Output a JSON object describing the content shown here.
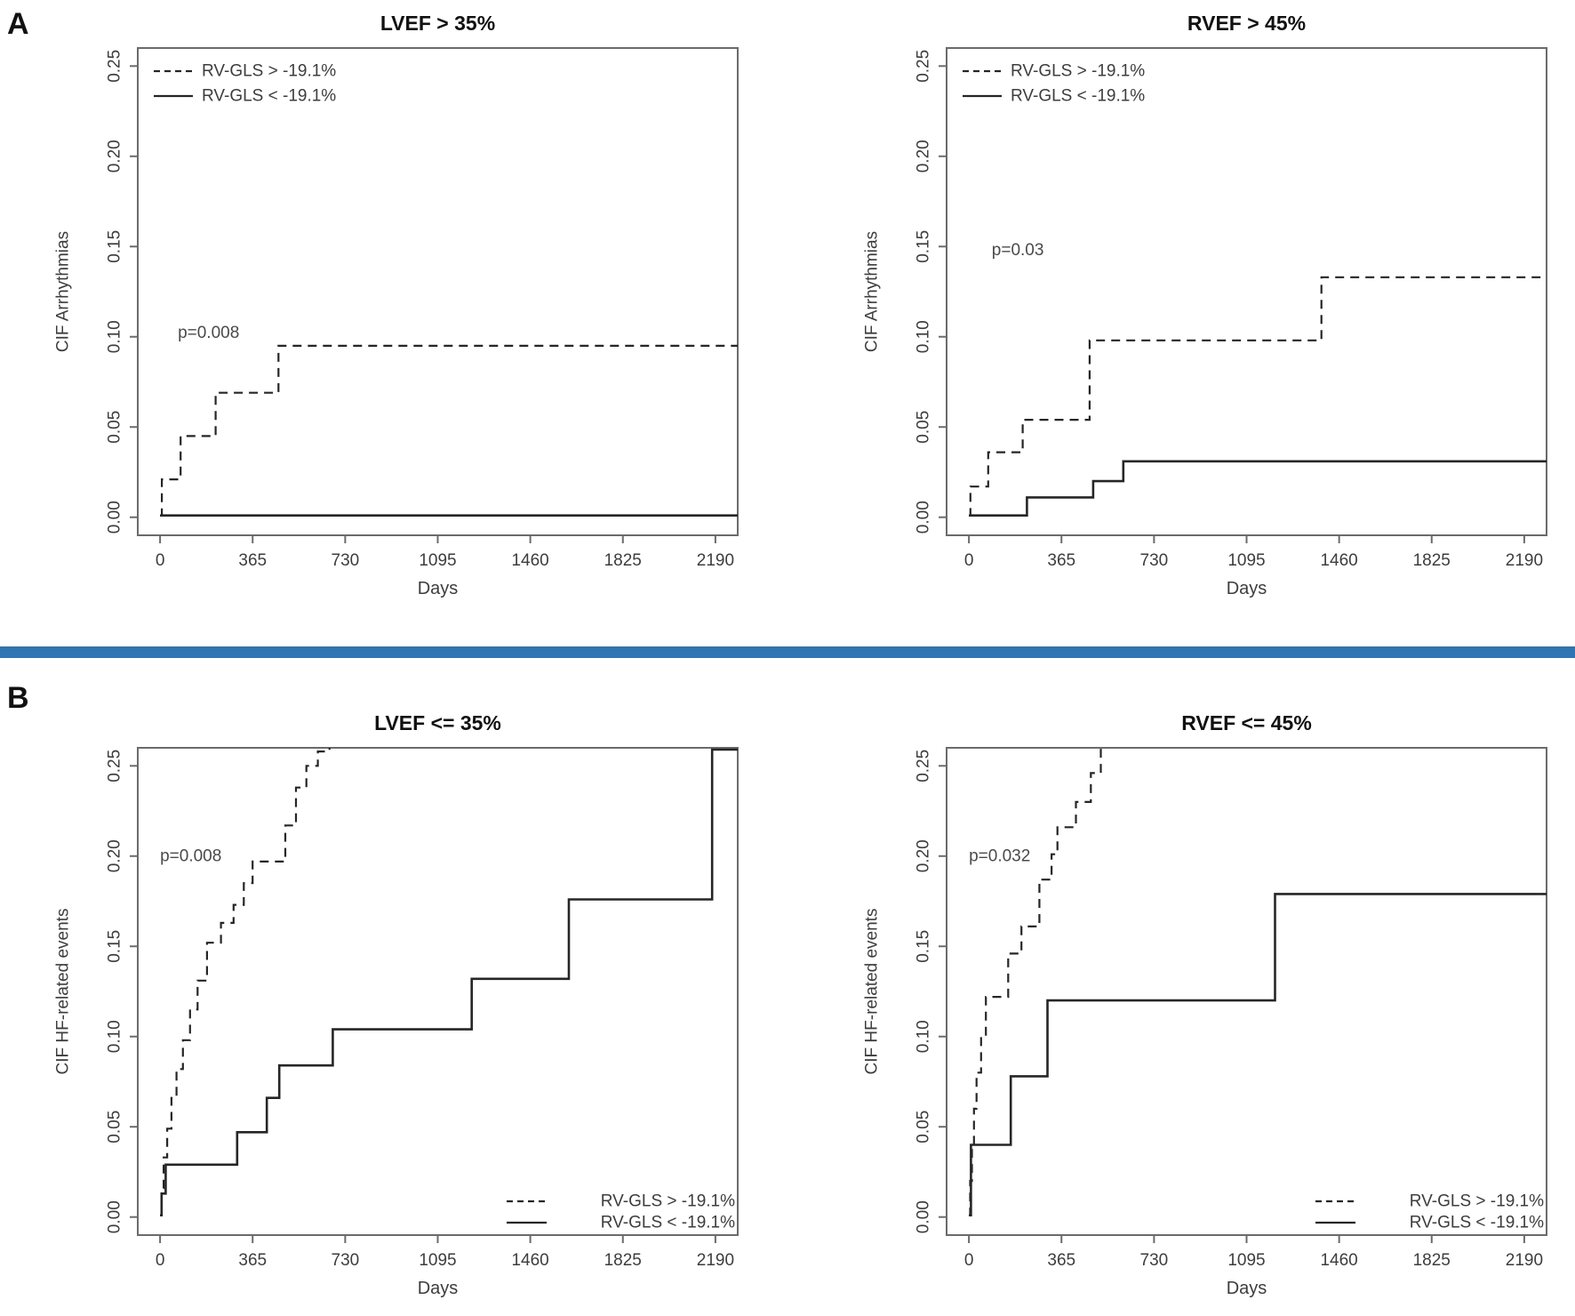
{
  "figure": {
    "panel_a_label": "A",
    "panel_b_label": "B",
    "divider_color": "#2e75b6",
    "background_color": "#ffffff",
    "curve_color": "#262626",
    "axis_color": "#6b6b6b",
    "tick_text_color": "#3d3d3d",
    "p_text_color": "#4a4a4a",
    "title_color": "#111111"
  },
  "chart_data": [
    {
      "id": "a-left",
      "type": "line",
      "panel": "A",
      "title": "LVEF > 35%",
      "xlabel": "Days",
      "ylabel": "CIF Arrhythmias",
      "p_value": {
        "text": "p=0.008",
        "x_day": 70,
        "y_value": 0.102
      },
      "x_ticks": [
        0,
        365,
        730,
        1095,
        1460,
        1825,
        2190
      ],
      "y_ticks": [
        "0.00",
        "0.05",
        "0.10",
        "0.15",
        "0.20",
        "0.25"
      ],
      "xlim": [
        -88,
        2278
      ],
      "ylim": [
        -0.01,
        0.26
      ],
      "grid": false,
      "legend": {
        "position": "top-left"
      },
      "series": [
        {
          "name": "RV-GLS > -19.1%",
          "style": "dashed",
          "steps": [
            [
              0,
              0.001
            ],
            [
              7,
              0.021
            ],
            [
              81,
              0.045
            ],
            [
              219,
              0.069
            ],
            [
              467,
              0.095
            ],
            [
              2278,
              0.095
            ]
          ]
        },
        {
          "name": "RV-GLS < -19.1%",
          "style": "solid",
          "steps": [
            [
              0,
              0.001
            ],
            [
              2278,
              0.001
            ]
          ]
        }
      ]
    },
    {
      "id": "a-right",
      "type": "line",
      "panel": "A",
      "title": "RVEF > 45%",
      "xlabel": "Days",
      "ylabel": "CIF Arrhythmias",
      "p_value": {
        "text": "p=0.03",
        "x_day": 90,
        "y_value": 0.148
      },
      "x_ticks": [
        0,
        365,
        730,
        1095,
        1460,
        1825,
        2190
      ],
      "y_ticks": [
        "0.00",
        "0.05",
        "0.10",
        "0.15",
        "0.20",
        "0.25"
      ],
      "xlim": [
        -88,
        2278
      ],
      "ylim": [
        -0.01,
        0.26
      ],
      "grid": false,
      "legend": {
        "position": "top-left"
      },
      "series": [
        {
          "name": "RV-GLS > -19.1%",
          "style": "dashed",
          "steps": [
            [
              0,
              0.001
            ],
            [
              6,
              0.017
            ],
            [
              76,
              0.036
            ],
            [
              212,
              0.054
            ],
            [
              476,
              0.098
            ],
            [
              1390,
              0.133
            ],
            [
              2278,
              0.133
            ]
          ]
        },
        {
          "name": "RV-GLS < -19.1%",
          "style": "solid",
          "steps": [
            [
              0,
              0.001
            ],
            [
              229,
              0.011
            ],
            [
              490,
              0.02
            ],
            [
              609,
              0.031
            ],
            [
              2278,
              0.031
            ]
          ]
        }
      ]
    },
    {
      "id": "b-left",
      "type": "line",
      "panel": "B",
      "title": "LVEF <= 35%",
      "xlabel": "Days",
      "ylabel": "CIF HF-related events",
      "p_value": {
        "text": "p=0.008",
        "x_day": 0,
        "y_value": 0.2
      },
      "x_ticks": [
        0,
        365,
        730,
        1095,
        1460,
        1825,
        2190
      ],
      "y_ticks": [
        "0.00",
        "0.05",
        "0.10",
        "0.15",
        "0.20",
        "0.25"
      ],
      "xlim": [
        -88,
        2278
      ],
      "ylim": [
        -0.01,
        0.26
      ],
      "grid": false,
      "legend": {
        "position": "bottom-right"
      },
      "series": [
        {
          "name": "RV-GLS > -19.1%",
          "style": "dashed",
          "steps": [
            [
              0,
              0.001
            ],
            [
              6,
              0.016
            ],
            [
              14,
              0.033
            ],
            [
              28,
              0.049
            ],
            [
              45,
              0.066
            ],
            [
              65,
              0.082
            ],
            [
              90,
              0.098
            ],
            [
              118,
              0.115
            ],
            [
              148,
              0.131
            ],
            [
              185,
              0.152
            ],
            [
              240,
              0.163
            ],
            [
              290,
              0.173
            ],
            [
              330,
              0.185
            ],
            [
              365,
              0.197
            ],
            [
              494,
              0.217
            ],
            [
              536,
              0.238
            ],
            [
              577,
              0.25
            ],
            [
              622,
              0.258
            ],
            [
              668,
              0.3
            ]
          ]
        },
        {
          "name": "RV-GLS < -19.1%",
          "style": "solid",
          "steps": [
            [
              0,
              0.001
            ],
            [
              6,
              0.013
            ],
            [
              22,
              0.029
            ],
            [
              304,
              0.047
            ],
            [
              421,
              0.066
            ],
            [
              470,
              0.084
            ],
            [
              681,
              0.104
            ],
            [
              1229,
              0.132
            ],
            [
              1612,
              0.176
            ],
            [
              2177,
              0.259
            ],
            [
              2278,
              0.259
            ]
          ]
        }
      ]
    },
    {
      "id": "b-right",
      "type": "line",
      "panel": "B",
      "title": "RVEF <= 45%",
      "xlabel": "Days",
      "ylabel": "CIF HF-related events",
      "p_value": {
        "text": "p=0.032",
        "x_day": 0,
        "y_value": 0.2
      },
      "x_ticks": [
        0,
        365,
        730,
        1095,
        1460,
        1825,
        2190
      ],
      "y_ticks": [
        "0.00",
        "0.05",
        "0.10",
        "0.15",
        "0.20",
        "0.25"
      ],
      "xlim": [
        -88,
        2278
      ],
      "ylim": [
        -0.01,
        0.26
      ],
      "grid": false,
      "legend": {
        "position": "bottom-right"
      },
      "series": [
        {
          "name": "RV-GLS > -19.1%",
          "style": "dashed",
          "steps": [
            [
              0,
              0.001
            ],
            [
              5,
              0.02
            ],
            [
              12,
              0.04
            ],
            [
              20,
              0.06
            ],
            [
              30,
              0.08
            ],
            [
              48,
              0.1
            ],
            [
              67,
              0.122
            ],
            [
              155,
              0.146
            ],
            [
              207,
              0.161
            ],
            [
              278,
              0.187
            ],
            [
              326,
              0.201
            ],
            [
              349,
              0.216
            ],
            [
              422,
              0.23
            ],
            [
              481,
              0.246
            ],
            [
              520,
              0.3
            ]
          ]
        },
        {
          "name": "RV-GLS < -19.1%",
          "style": "solid",
          "steps": [
            [
              0,
              0.001
            ],
            [
              8,
              0.04
            ],
            [
              165,
              0.078
            ],
            [
              310,
              0.12
            ],
            [
              1207,
              0.179
            ],
            [
              2278,
              0.179
            ]
          ]
        }
      ]
    }
  ]
}
